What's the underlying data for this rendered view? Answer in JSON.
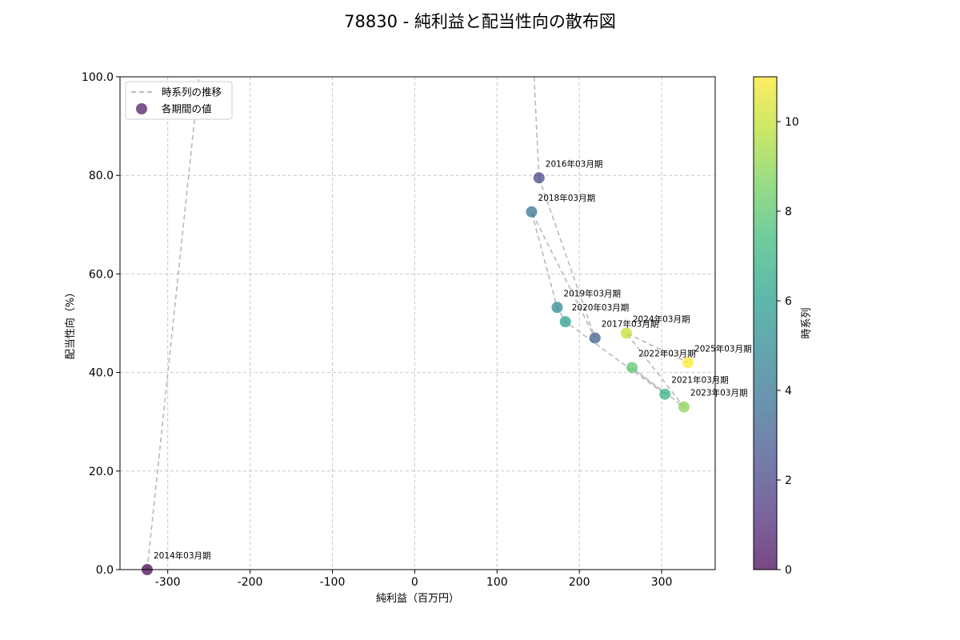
{
  "chart_data": {
    "type": "scatter",
    "title": "78830 - 純利益と配当性向の散布図",
    "xlabel": "純利益（百万円）",
    "ylabel": "配当性向（%）",
    "xlim": [
      -358,
      365
    ],
    "ylim": [
      0,
      100
    ],
    "x_ticks": [
      -300,
      -200,
      -100,
      0,
      100,
      200,
      300
    ],
    "y_ticks": [
      0,
      20,
      40,
      60,
      80,
      100
    ],
    "y_tick_labels": [
      "0.0",
      "20.0",
      "40.0",
      "60.0",
      "80.0",
      "100.0"
    ],
    "grid": true,
    "legend": {
      "placement": "top-left",
      "entries": [
        {
          "label": "時系列の推移",
          "style": "dashed-line",
          "color": "#aaaaaa"
        },
        {
          "label": "各期間の値",
          "style": "marker",
          "color": "#5b2c6f"
        }
      ]
    },
    "colorbar": {
      "label": "時系列",
      "colormap": "viridis",
      "min": 0,
      "max": 11,
      "ticks": [
        0,
        2,
        4,
        6,
        8,
        10
      ]
    },
    "trend_line": {
      "segments_off_chart": [
        {
          "from": [
            -325,
            0
          ],
          "to": [
            -262,
            100
          ],
          "note": "line continues above plot"
        },
        {
          "from": [
            145,
            100
          ],
          "to": [
            151,
            79.5
          ]
        }
      ]
    },
    "points": [
      {
        "label": "2014年03月期",
        "x": -325,
        "y": 0,
        "t": 0
      },
      {
        "label": "2016年03月期",
        "x": 151,
        "y": 79.5,
        "t": 2
      },
      {
        "label": "2017年03月期",
        "x": 219,
        "y": 47,
        "t": 3
      },
      {
        "label": "2018年03月期",
        "x": 142,
        "y": 72.6,
        "t": 4
      },
      {
        "label": "2019年03月期",
        "x": 173,
        "y": 53.2,
        "t": 5
      },
      {
        "label": "2020年03月期",
        "x": 183,
        "y": 50.3,
        "t": 6
      },
      {
        "label": "2021年03月期",
        "x": 304,
        "y": 35.6,
        "t": 7
      },
      {
        "label": "2022年03月期",
        "x": 264,
        "y": 41,
        "t": 8
      },
      {
        "label": "2023年03月期",
        "x": 327,
        "y": 33,
        "t": 9
      },
      {
        "label": "2024年03月期",
        "x": 257,
        "y": 48,
        "t": 10
      },
      {
        "label": "2025年03月期",
        "x": 332,
        "y": 42,
        "t": 11
      }
    ]
  }
}
